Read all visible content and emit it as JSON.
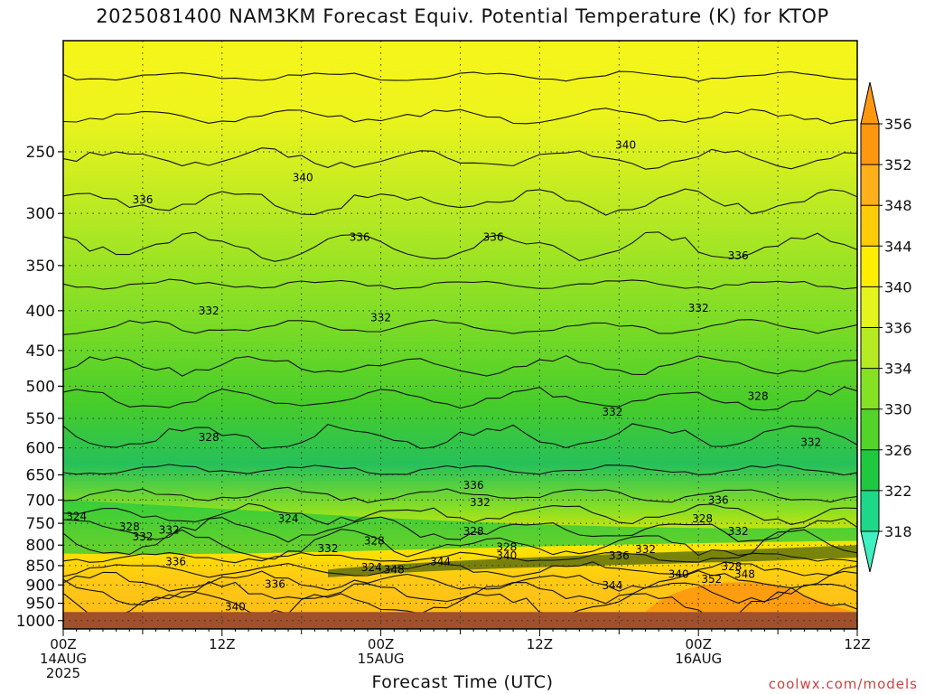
{
  "chart_data": {
    "type": "heatmap",
    "title": "2025081400 NAM3KM Forecast Equiv. Potential Temperature (K) for KTOP",
    "xlabel": "Forecast Time (UTC)",
    "ylabel": "",
    "credit": "coolwx.com/models",
    "y_scale": "log-pressure",
    "ylim": [
      1025,
      180
    ],
    "xlim": [
      0,
      60
    ],
    "grid": true,
    "y_ticks": [
      250,
      300,
      350,
      400,
      450,
      500,
      550,
      600,
      650,
      700,
      750,
      800,
      850,
      900,
      950,
      1000
    ],
    "x_ticks": [
      {
        "hour": 0,
        "lines": [
          "00Z",
          "14AUG",
          "2025"
        ]
      },
      {
        "hour": 12,
        "lines": [
          "12Z"
        ]
      },
      {
        "hour": 24,
        "lines": [
          "00Z",
          "15AUG"
        ]
      },
      {
        "hour": 36,
        "lines": [
          "12Z"
        ]
      },
      {
        "hour": 48,
        "lines": [
          "00Z",
          "16AUG"
        ]
      },
      {
        "hour": 60,
        "lines": [
          "12Z"
        ]
      }
    ],
    "colorbar": {
      "levels": [
        318,
        322,
        326,
        330,
        334,
        336,
        340,
        344,
        348,
        352,
        356
      ],
      "colors": [
        "#3ff0c0",
        "#1ed88a",
        "#20c840",
        "#52d428",
        "#86e024",
        "#b6ea22",
        "#e4f41c",
        "#ffee00",
        "#ffcc0a",
        "#ffb01a",
        "#ff9810"
      ]
    },
    "ground": {
      "pressure": 975,
      "color": "#a0502a"
    },
    "contour_labels": [
      {
        "text": "340",
        "hour": 42.5,
        "p": 245
      },
      {
        "text": "340",
        "hour": 18.1,
        "p": 270
      },
      {
        "text": "336",
        "hour": 6.0,
        "p": 288
      },
      {
        "text": "336",
        "hour": 22.4,
        "p": 322
      },
      {
        "text": "336",
        "hour": 32.5,
        "p": 322
      },
      {
        "text": "336",
        "hour": 51.0,
        "p": 340
      },
      {
        "text": "332",
        "hour": 11.0,
        "p": 400
      },
      {
        "text": "332",
        "hour": 24.0,
        "p": 408
      },
      {
        "text": "332",
        "hour": 48.0,
        "p": 397
      },
      {
        "text": "328",
        "hour": 52.5,
        "p": 515
      },
      {
        "text": "332",
        "hour": 41.5,
        "p": 540
      },
      {
        "text": "328",
        "hour": 11.0,
        "p": 582
      },
      {
        "text": "332",
        "hour": 56.5,
        "p": 590
      },
      {
        "text": "336",
        "hour": 31.0,
        "p": 670
      },
      {
        "text": "332",
        "hour": 31.5,
        "p": 705
      },
      {
        "text": "336",
        "hour": 49.5,
        "p": 700
      },
      {
        "text": "324",
        "hour": 1.0,
        "p": 735
      },
      {
        "text": "328",
        "hour": 5.0,
        "p": 758
      },
      {
        "text": "324",
        "hour": 17.0,
        "p": 740
      },
      {
        "text": "332",
        "hour": 6.0,
        "p": 780
      },
      {
        "text": "332",
        "hour": 8.0,
        "p": 765
      },
      {
        "text": "328",
        "hour": 31.0,
        "p": 768
      },
      {
        "text": "328",
        "hour": 48.3,
        "p": 740
      },
      {
        "text": "332",
        "hour": 51.0,
        "p": 768
      },
      {
        "text": "332",
        "hour": 20.0,
        "p": 808
      },
      {
        "text": "328",
        "hour": 23.5,
        "p": 790
      },
      {
        "text": "328",
        "hour": 33.5,
        "p": 805
      },
      {
        "text": "340",
        "hour": 33.5,
        "p": 825
      },
      {
        "text": "332",
        "hour": 44.0,
        "p": 810
      },
      {
        "text": "336",
        "hour": 42.0,
        "p": 825
      },
      {
        "text": "336",
        "hour": 8.5,
        "p": 840
      },
      {
        "text": "324",
        "hour": 23.3,
        "p": 855
      },
      {
        "text": "348",
        "hour": 25.0,
        "p": 860
      },
      {
        "text": "344",
        "hour": 28.5,
        "p": 840
      },
      {
        "text": "328",
        "hour": 50.5,
        "p": 852
      },
      {
        "text": "348",
        "hour": 51.5,
        "p": 872
      },
      {
        "text": "340",
        "hour": 46.5,
        "p": 872
      },
      {
        "text": "352",
        "hour": 49.0,
        "p": 885
      },
      {
        "text": "344",
        "hour": 41.5,
        "p": 902
      },
      {
        "text": "336",
        "hour": 16.0,
        "p": 898
      },
      {
        "text": "340",
        "hour": 13.0,
        "p": 960
      }
    ]
  }
}
